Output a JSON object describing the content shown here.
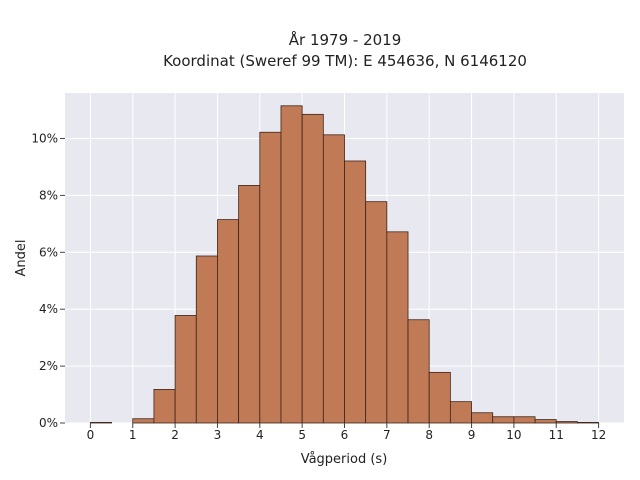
{
  "chart_data": {
    "type": "bar",
    "title": "År 1979 - 2019",
    "subtitle": "Koordinat (Sweref 99 TM): E 454636, N 6146120",
    "xlabel": "Vågperiod (s)",
    "ylabel": "Andel",
    "x_ticks": [
      "0",
      "1",
      "2",
      "3",
      "4",
      "5",
      "6",
      "7",
      "8",
      "9",
      "10",
      "11",
      "12"
    ],
    "y_ticks": [
      "0%",
      "2%",
      "4%",
      "6%",
      "8%",
      "10%"
    ],
    "xlim": [
      -0.6,
      12.6
    ],
    "ylim": [
      0,
      11.6
    ],
    "bin_width": 0.5,
    "bin_starts": [
      0.0,
      0.5,
      1.0,
      1.5,
      2.0,
      2.5,
      3.0,
      3.5,
      4.0,
      4.5,
      5.0,
      5.5,
      6.0,
      6.5,
      7.0,
      7.5,
      8.0,
      8.5,
      9.0,
      9.5,
      10.0,
      10.5,
      11.0,
      11.5,
      12.0
    ],
    "values": [
      0.02,
      0.0,
      0.15,
      1.18,
      3.78,
      5.87,
      7.15,
      8.35,
      10.22,
      11.15,
      10.85,
      10.13,
      9.21,
      7.78,
      6.72,
      3.63,
      1.78,
      0.75,
      0.36,
      0.22,
      0.22,
      0.12,
      0.05,
      0.02,
      0.0
    ],
    "unit": "%",
    "bar_color": "#c07b56",
    "bar_edge_color": "#3d2418",
    "background_color": "#e8e8f0",
    "grid_color": "#ffffff",
    "grid": true,
    "legend": "none"
  }
}
